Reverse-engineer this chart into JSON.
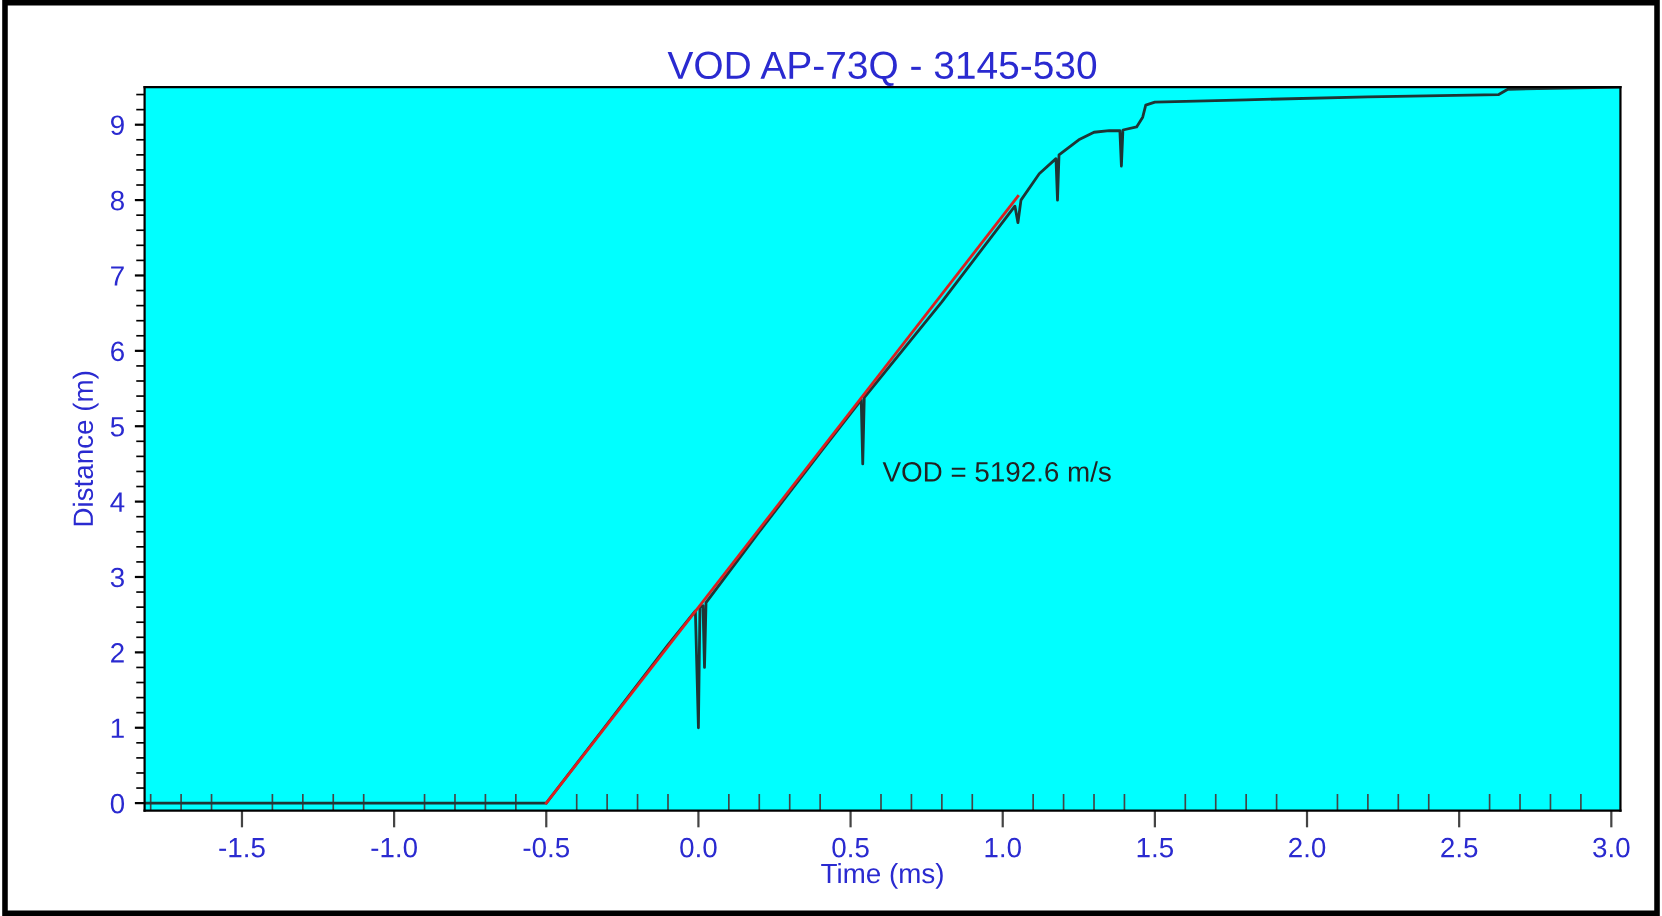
{
  "chart_data": {
    "type": "line",
    "title": "VOD AP-73Q - 3145-530",
    "xlabel": "Time (ms)",
    "ylabel": "Distance (m)",
    "annotations": [
      "VOD = 5192.6 m/s"
    ],
    "series": [
      {
        "color": "#1e3535",
        "x": [
          -1.82,
          -0.5,
          -0.3,
          -0.1,
          -0.01,
          0.0,
          0.005,
          0.015,
          0.02,
          0.025,
          0.2,
          0.4,
          0.535,
          0.54,
          0.545,
          0.8,
          1.04,
          1.05,
          1.06,
          1.12,
          1.175,
          1.18,
          1.185,
          1.25,
          1.3,
          1.35,
          1.385,
          1.39,
          1.395,
          1.44,
          1.46,
          1.47,
          1.5,
          1.8,
          2.2,
          2.63,
          2.66,
          3.03
        ],
        "values": [
          0,
          0,
          1.05,
          2.1,
          2.55,
          1.0,
          2.6,
          2.62,
          1.8,
          2.66,
          3.6,
          4.65,
          5.35,
          4.5,
          5.38,
          6.65,
          7.92,
          7.7,
          8.0,
          8.35,
          8.55,
          8.0,
          8.6,
          8.8,
          8.9,
          8.92,
          8.92,
          8.45,
          8.93,
          8.97,
          9.1,
          9.26,
          9.3,
          9.33,
          9.37,
          9.4,
          9.47,
          9.5
        ]
      },
      {
        "color": "#d82020",
        "x": [
          -0.5,
          1.05
        ],
        "values": [
          0,
          8.05
        ]
      }
    ],
    "xlim": [
      -1.82,
      3.03
    ],
    "ylim": [
      -0.1,
      9.5
    ],
    "xticks": [
      {
        "value": -1.5,
        "label": "-1.5"
      },
      {
        "value": -1.0,
        "label": "-1.0"
      },
      {
        "value": -0.5,
        "label": "-0.5"
      },
      {
        "value": 0.0,
        "label": "0.0"
      },
      {
        "value": 0.5,
        "label": "0.5"
      },
      {
        "value": 1.0,
        "label": "1.0"
      },
      {
        "value": 1.5,
        "label": "1.5"
      },
      {
        "value": 2.0,
        "label": "2.0"
      },
      {
        "value": 2.5,
        "label": "2.5"
      },
      {
        "value": 3.0,
        "label": "3.0"
      }
    ],
    "yticks": [
      0,
      1,
      2,
      3,
      4,
      5,
      6,
      7,
      8,
      9
    ],
    "grid": false,
    "legend": false,
    "marker": "none",
    "line_style": "solid"
  }
}
